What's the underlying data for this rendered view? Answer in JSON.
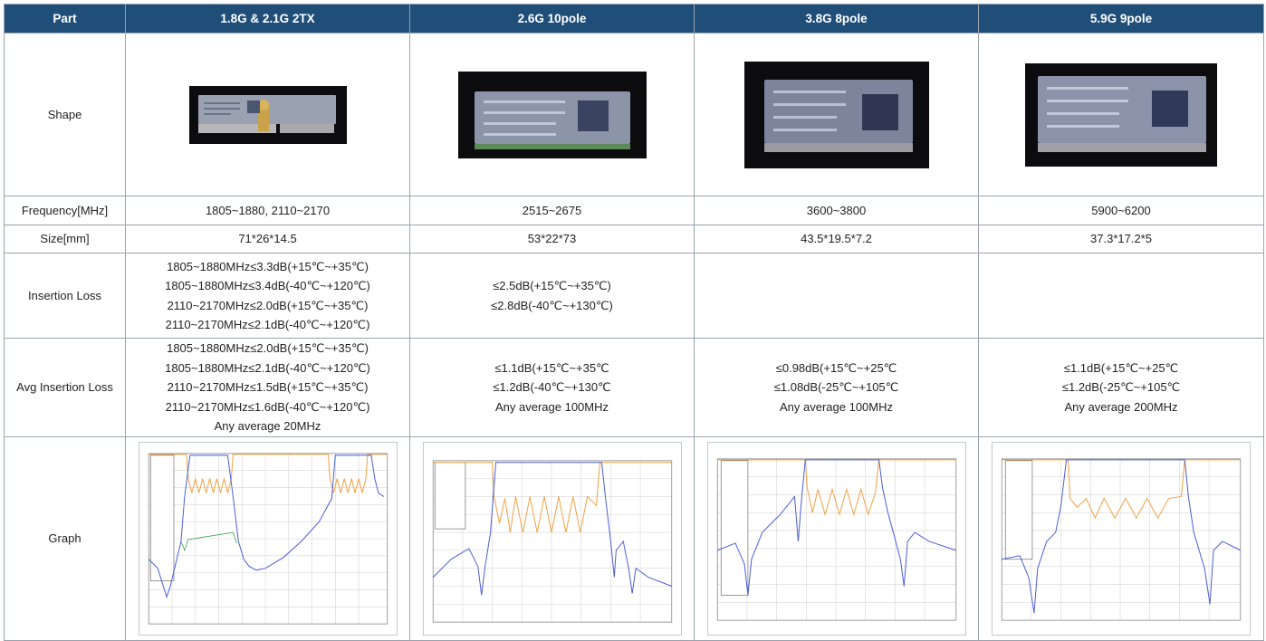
{
  "header": {
    "part": "Part",
    "col1": "1.8G & 2.1G 2TX",
    "col2": "2.6G 10pole",
    "col3": "3.8G 8pole",
    "col4": "5.9G 9pole"
  },
  "rows": {
    "shape": {
      "label": "Shape"
    },
    "frequency": {
      "label": "Frequency[MHz]",
      "values": [
        "1805~1880, 2110~2170",
        "2515~2675",
        "3600~3800",
        "5900~6200"
      ]
    },
    "size": {
      "label": "Size[mm]",
      "values": [
        "71*26*14.5",
        "53*22*73",
        "43.5*19.5*7.2",
        "37.3*17.2*5"
      ]
    },
    "insertion_loss": {
      "label": "Insertion Loss",
      "values": [
        "1805~1880MHz≤3.3dB(+15℃~+35℃)\n1805~1880MHz≤3.4dB(-40℃~+120℃)\n2110~2170MHz≤2.0dB(+15℃~+35℃)\n2110~2170MHz≤2.1dB(-40℃~+120℃)",
        "≤2.5dB(+15℃~+35℃)\n≤2.8dB(-40℃~+130℃)",
        "",
        ""
      ]
    },
    "avg_insertion_loss": {
      "label": "Avg Insertion Loss",
      "values": [
        "1805~1880MHz≤2.0dB(+15℃~+35℃)\n1805~1880MHz≤2.1dB(-40℃~+120℃)\n2110~2170MHz≤1.5dB(+15℃~+35℃)\n2110~2170MHz≤1.6dB(-40℃~+120℃)\nAny average 20MHz",
        "≤1.1dB(+15℃~+35℃\n≤1.2dB(-40℃~+130℃\nAny average 100MHz",
        "≤0.98dB(+15℃~+25℃\n≤1.08dB(-25℃~+105℃\nAny average 100MHz",
        "≤1.1dB(+15℃~+25℃\n≤1.2dB(-25℃~+105℃\nAny average 200MHz"
      ]
    },
    "graph": {
      "label": "Graph"
    }
  },
  "colors": {
    "header_bg": "#1f4e79",
    "trace_blue": "#4a5cd8",
    "trace_orange": "#f0a040",
    "trace_green": "#3aa04a"
  }
}
